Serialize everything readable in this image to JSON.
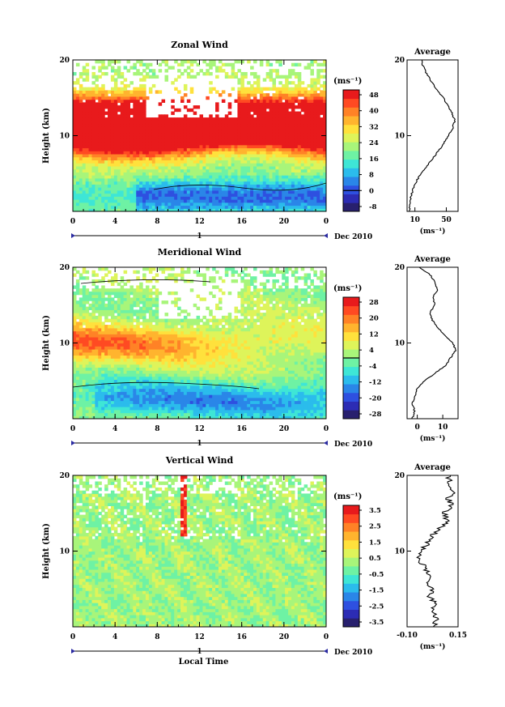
{
  "chart_data": [
    {
      "type": "heatmap",
      "title": "Zonal Wind",
      "ylabel": "Height (km)",
      "y_ticks": [
        "20",
        "10"
      ],
      "x_ticks": [
        "0",
        "4",
        "8",
        "12",
        "16",
        "20",
        "0"
      ],
      "ylim": [
        0,
        20
      ],
      "xlim": [
        0,
        24
      ],
      "date_axis_label": "1",
      "date_unit": "Dec 2010",
      "colorbar": {
        "unit": "(ms⁻¹)",
        "labels": [
          "48",
          "40",
          "32",
          "24",
          "16",
          "8",
          "0",
          "-8"
        ],
        "levels": [
          -8,
          48
        ],
        "colors": [
          "#28206e",
          "#2c2cb4",
          "#2e50e0",
          "#2a86e8",
          "#2bbcec",
          "#3ee6d6",
          "#6ef2a4",
          "#a8f57a",
          "#def45a",
          "#ffe13c",
          "#ffb42e",
          "#ff8226",
          "#ff4a22",
          "#e81a1c"
        ],
        "contour_at": "0"
      },
      "average_profile": {
        "title": "Average",
        "x_ticks": [
          "10",
          "50"
        ],
        "xlim": [
          0,
          65
        ],
        "unit": "(ms⁻¹)",
        "y_ticks": [
          "20",
          "10"
        ],
        "heights_km": [
          0,
          1,
          2,
          3,
          4,
          5,
          6,
          7,
          8,
          9,
          10,
          11,
          12,
          13,
          14,
          15,
          16,
          17,
          18,
          19,
          20
        ],
        "values": [
          3,
          4,
          5,
          8,
          12,
          18,
          25,
          33,
          40,
          47,
          53,
          58,
          61,
          57,
          52,
          46,
          38,
          32,
          26,
          21,
          18
        ]
      }
    },
    {
      "type": "heatmap",
      "title": "Meridional Wind",
      "ylabel": "Height (km)",
      "y_ticks": [
        "20",
        "10"
      ],
      "x_ticks": [
        "0",
        "4",
        "8",
        "12",
        "16",
        "20",
        "0"
      ],
      "ylim": [
        0,
        20
      ],
      "xlim": [
        0,
        24
      ],
      "date_axis_label": "1",
      "date_unit": "Dec 2010",
      "colorbar": {
        "unit": "(ms⁻¹)",
        "labels": [
          "28",
          "20",
          "12",
          "4",
          "-4",
          "-12",
          "-20",
          "-28"
        ],
        "levels": [
          -28,
          28
        ],
        "colors": [
          "#28206e",
          "#2c2cb4",
          "#2e50e0",
          "#2a86e8",
          "#2bbcec",
          "#3ee6d6",
          "#6ef2a4",
          "#a8f57a",
          "#def45a",
          "#ffe13c",
          "#ffb42e",
          "#ff8226",
          "#ff4a22",
          "#e81a1c"
        ],
        "contour_at": "0"
      },
      "average_profile": {
        "title": "Average",
        "x_ticks": [
          "0",
          "10"
        ],
        "xlim": [
          -4,
          16
        ],
        "unit": "(ms⁻¹)",
        "y_ticks": [
          "20",
          "10"
        ],
        "heights_km": [
          0,
          1,
          2,
          3,
          4,
          5,
          6,
          7,
          8,
          9,
          10,
          11,
          12,
          13,
          14,
          15,
          16,
          17,
          18,
          19,
          20
        ],
        "values": [
          -2,
          -1,
          -2,
          -1,
          0,
          3,
          7,
          11,
          13,
          15,
          14,
          11,
          8,
          6,
          5,
          7,
          6,
          8,
          7,
          5,
          1
        ]
      }
    },
    {
      "type": "heatmap",
      "title": "Vertical Wind",
      "xlabel": "Local Time",
      "ylabel": "Height (km)",
      "y_ticks": [
        "20",
        "10"
      ],
      "x_ticks": [
        "0",
        "4",
        "8",
        "12",
        "16",
        "20",
        "0"
      ],
      "ylim": [
        0,
        20
      ],
      "xlim": [
        0,
        24
      ],
      "date_axis_label": "1",
      "date_unit": "Dec 2010",
      "colorbar": {
        "unit": "(ms⁻¹)",
        "labels": [
          "3.5",
          "2.5",
          "1.5",
          "0.5",
          "-0.5",
          "-1.5",
          "-2.5",
          "-3.5"
        ],
        "levels": [
          -3.5,
          3.5
        ],
        "colors": [
          "#28206e",
          "#2c2cb4",
          "#2e50e0",
          "#2a86e8",
          "#2bbcec",
          "#3ee6d6",
          "#6ef2a4",
          "#a8f57a",
          "#def45a",
          "#ffe13c",
          "#ffb42e",
          "#ff8226",
          "#ff4a22",
          "#e81a1c"
        ]
      },
      "average_profile": {
        "title": "Average",
        "x_ticks": [
          "-0.10",
          "0.15"
        ],
        "xlim": [
          -0.1,
          0.15
        ],
        "unit": "(ms⁻¹)",
        "y_ticks": [
          "20",
          "10"
        ],
        "heights_km": [
          0,
          1,
          2,
          3,
          4,
          5,
          6,
          7,
          8,
          9,
          10,
          11,
          12,
          13,
          14,
          15,
          16,
          17,
          18,
          19,
          20
        ],
        "values": [
          0.03,
          0.05,
          0.02,
          0.04,
          0.01,
          0.02,
          0.0,
          0.01,
          -0.02,
          -0.04,
          -0.03,
          0.0,
          0.02,
          0.06,
          0.1,
          0.08,
          0.12,
          0.1,
          0.13,
          0.11,
          0.1
        ]
      }
    }
  ]
}
